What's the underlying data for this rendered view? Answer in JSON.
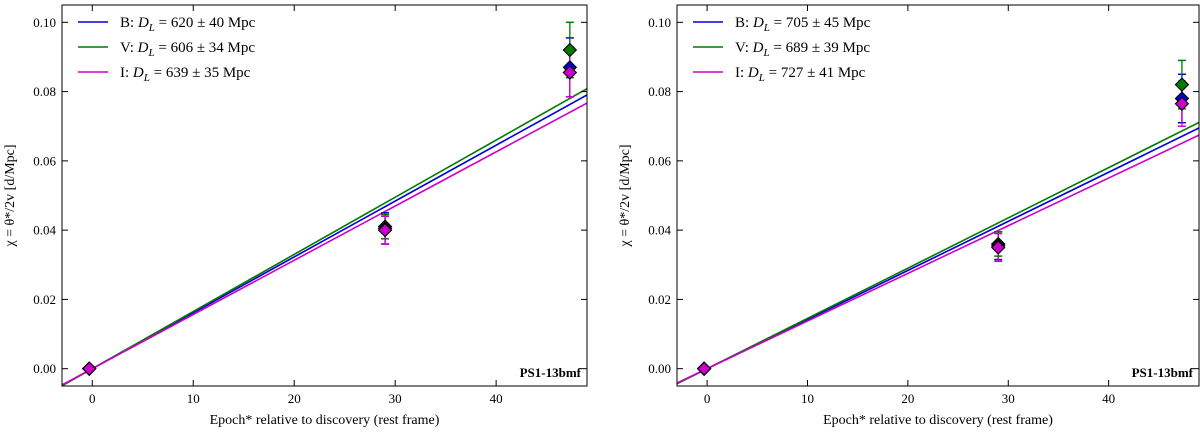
{
  "chart_data": [
    {
      "type": "scatter",
      "panel": "left",
      "xlabel": "Epoch* relative to discovery (rest frame)",
      "ylabel": "χ = θ*/2v [d/Mpc]",
      "xlim": [
        -3,
        49
      ],
      "ylim": [
        -0.005,
        0.105
      ],
      "xticks": [
        0,
        10,
        20,
        30,
        40
      ],
      "yticks": [
        0.0,
        0.02,
        0.04,
        0.06,
        0.08,
        0.1
      ],
      "ytick_labels": [
        "0.00",
        "0.02",
        "0.04",
        "0.06",
        "0.08",
        "0.10"
      ],
      "annotation": "PS1-13bmf",
      "legend_position": "upper-left",
      "series": [
        {
          "name": "B",
          "legend": "B: D_L = 620 ± 40 Mpc",
          "dl_value": "620 ± 40 Mpc",
          "color": "#0000dd",
          "slope": 0.001613,
          "points": [
            {
              "x": -0.3,
              "y": 0.0,
              "err": 0.0
            },
            {
              "x": 29,
              "y": 0.0405,
              "err": 0.0045
            },
            {
              "x": 47.3,
              "y": 0.087,
              "err": 0.0085
            }
          ]
        },
        {
          "name": "V",
          "legend": "V: D_L = 606 ± 34 Mpc",
          "dl_value": "606 ± 34 Mpc",
          "color": "#007a00",
          "slope": 0.00165,
          "points": [
            {
              "x": -0.3,
              "y": 0.0,
              "err": 0.0
            },
            {
              "x": 29,
              "y": 0.041,
              "err": 0.0035
            },
            {
              "x": 47.3,
              "y": 0.092,
              "err": 0.008
            }
          ]
        },
        {
          "name": "I",
          "legend": "I: D_L = 639 ± 35 Mpc",
          "dl_value": "639 ± 35 Mpc",
          "color": "#cc00cc",
          "slope": 0.001565,
          "points": [
            {
              "x": -0.3,
              "y": 0.0,
              "err": 0.0
            },
            {
              "x": 29,
              "y": 0.04,
              "err": 0.004
            },
            {
              "x": 47.3,
              "y": 0.0855,
              "err": 0.007
            }
          ]
        }
      ]
    },
    {
      "type": "scatter",
      "panel": "right",
      "xlabel": "Epoch* relative to discovery (rest frame)",
      "ylabel": "χ = θ*/2v [d/Mpc]",
      "xlim": [
        -3,
        49
      ],
      "ylim": [
        -0.005,
        0.105
      ],
      "xticks": [
        0,
        10,
        20,
        30,
        40
      ],
      "yticks": [
        0.0,
        0.02,
        0.04,
        0.06,
        0.08,
        0.1
      ],
      "ytick_labels": [
        "0.00",
        "0.02",
        "0.04",
        "0.06",
        "0.08",
        "0.10"
      ],
      "annotation": "PS1-13bmf",
      "legend_position": "upper-left",
      "series": [
        {
          "name": "B",
          "legend": "B: D_L = 705 ± 45 Mpc",
          "dl_value": "705 ± 45 Mpc",
          "color": "#0000dd",
          "slope": 0.001418,
          "points": [
            {
              "x": -0.3,
              "y": 0.0,
              "err": 0.0
            },
            {
              "x": 29,
              "y": 0.0355,
              "err": 0.004
            },
            {
              "x": 47.3,
              "y": 0.078,
              "err": 0.007
            }
          ]
        },
        {
          "name": "V",
          "legend": "V: D_L = 689 ± 39 Mpc",
          "dl_value": "689 ± 39 Mpc",
          "color": "#007a00",
          "slope": 0.001451,
          "points": [
            {
              "x": -0.3,
              "y": 0.0,
              "err": 0.0
            },
            {
              "x": 29,
              "y": 0.036,
              "err": 0.0035
            },
            {
              "x": 47.3,
              "y": 0.082,
              "err": 0.007
            }
          ]
        },
        {
          "name": "I",
          "legend": "I: D_L = 727 ± 41 Mpc",
          "dl_value": "727 ± 41 Mpc",
          "color": "#cc00cc",
          "slope": 0.001376,
          "points": [
            {
              "x": -0.3,
              "y": 0.0,
              "err": 0.0
            },
            {
              "x": 29,
              "y": 0.035,
              "err": 0.004
            },
            {
              "x": 47.3,
              "y": 0.0765,
              "err": 0.0065
            }
          ]
        }
      ]
    }
  ]
}
